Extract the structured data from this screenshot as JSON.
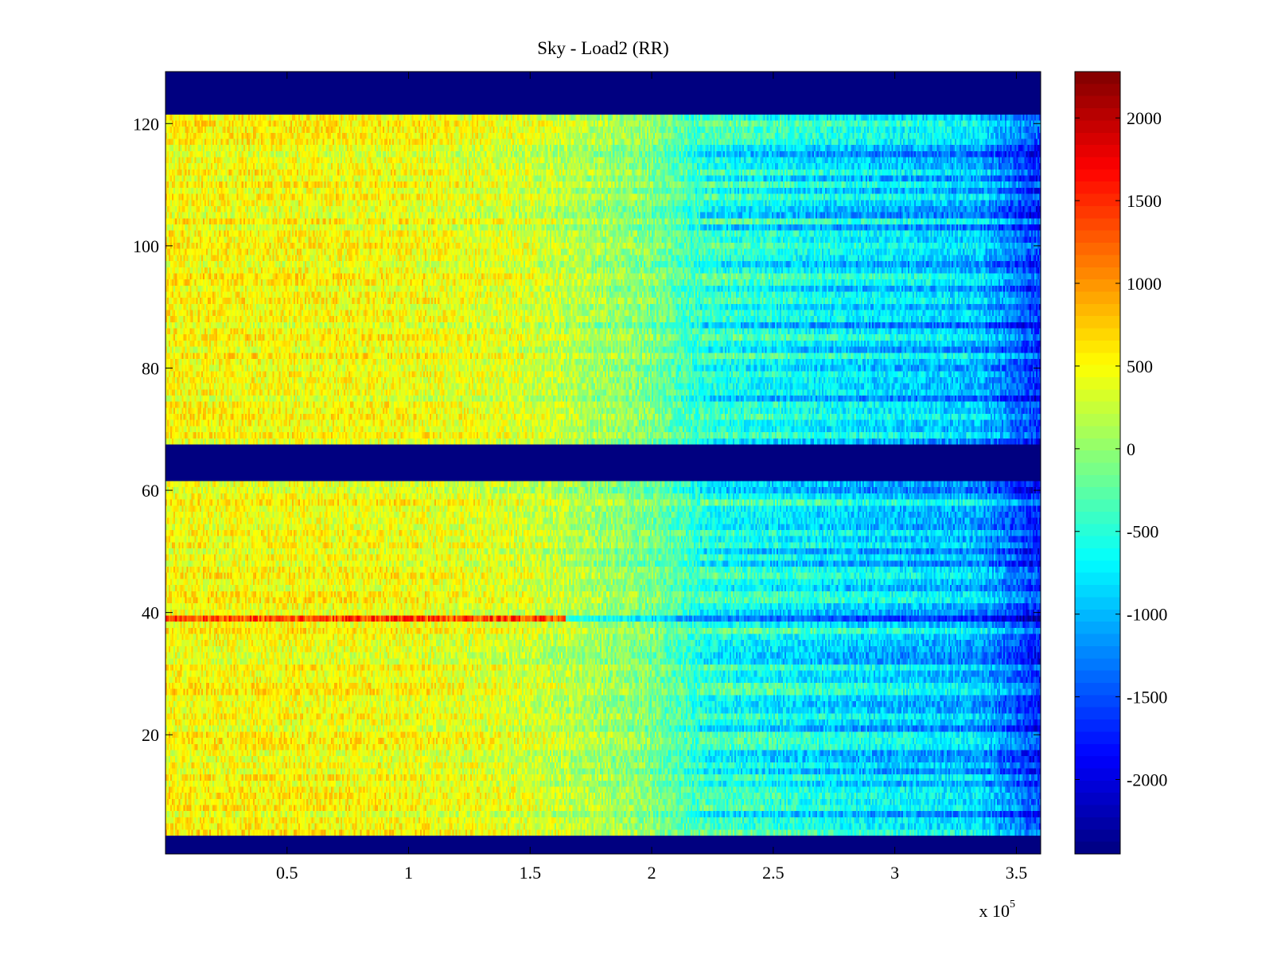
{
  "chart_data": {
    "type": "heatmap",
    "title": "Sky - Load2 (RR)",
    "xlabel": "",
    "ylabel": "",
    "x_range": [
      0,
      360000
    ],
    "y_range": [
      0.5,
      128.5
    ],
    "x_ticks": [
      50000,
      100000,
      150000,
      200000,
      250000,
      300000,
      350000
    ],
    "x_tick_labels": [
      "0.5",
      "1",
      "1.5",
      "2",
      "2.5",
      "3",
      "3.5"
    ],
    "x_multiplier_label": {
      "base": "x 10",
      "exponent": "5"
    },
    "y_ticks": [
      20,
      40,
      60,
      80,
      100,
      120
    ],
    "y_tick_labels": [
      "20",
      "40",
      "60",
      "80",
      "100",
      "120"
    ],
    "colorbar": {
      "colormap": "jet",
      "range": [
        -2450,
        2280
      ],
      "ticks": [
        2000,
        1500,
        1000,
        500,
        0,
        -500,
        -1000,
        -1500,
        -2000
      ],
      "tick_labels": [
        "2000",
        "1500",
        "1000",
        "500",
        "0",
        "-500",
        "-1000",
        "-1500",
        "-2000"
      ]
    },
    "masked_rows": [
      {
        "from": 1,
        "to": 3,
        "value": -2450
      },
      {
        "from": 62,
        "to": 67,
        "value": -2450
      },
      {
        "from": 122,
        "to": 128,
        "value": -2450
      }
    ],
    "notable_rows": [
      {
        "row": 39,
        "description": "strong positive stripe up to about 1.6e5",
        "peak_value": 1800
      }
    ],
    "value_trend": [
      {
        "x": 0,
        "value": 500
      },
      {
        "x": 100000,
        "value": 450
      },
      {
        "x": 150000,
        "value": 300
      },
      {
        "x": 200000,
        "value": -100
      },
      {
        "x": 220000,
        "value": -500
      },
      {
        "x": 280000,
        "value": -800
      },
      {
        "x": 335000,
        "value": -1000
      },
      {
        "x": 360000,
        "value": -1700
      }
    ]
  }
}
